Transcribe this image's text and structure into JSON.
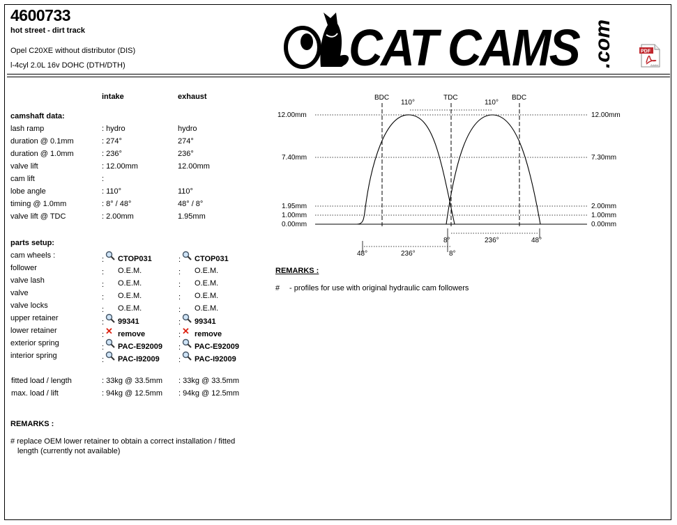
{
  "header": {
    "part_number": "4600733",
    "subtitle": "hot street - dirt track",
    "engine_line1": "Opel C20XE without distributor (DIS)",
    "engine_line2": "l-4cyl 2.0L 16v DOHC (DTH/DTH)",
    "brand": "CAT CAMS",
    "brand_suffix": ".com",
    "pdf_label": "PDF",
    "pdf_sub": "Adobe"
  },
  "columns": {
    "intake": "intake",
    "exhaust": "exhaust"
  },
  "camshaft": {
    "title": "camshaft data:",
    "rows": [
      {
        "label": "lash ramp",
        "intake": ": hydro",
        "exhaust": "hydro"
      },
      {
        "label": "duration @ 0.1mm",
        "intake": ": 274°",
        "exhaust": "274°"
      },
      {
        "label": "duration @ 1.0mm",
        "intake": ": 236°",
        "exhaust": "236°"
      },
      {
        "label": "valve lift",
        "intake": ": 12.00mm",
        "exhaust": "12.00mm"
      },
      {
        "label": "cam lift",
        "intake": ":",
        "exhaust": ""
      },
      {
        "label": "lobe angle",
        "intake": ": 110°",
        "exhaust": "110°"
      },
      {
        "label": "timing @ 1.0mm",
        "intake": ": 8° / 48°",
        "exhaust": "48° / 8°"
      },
      {
        "label": "valve lift @ TDC",
        "intake": ": 2.00mm",
        "exhaust": "1.95mm"
      }
    ]
  },
  "parts": {
    "title": "parts setup:",
    "rows": [
      {
        "label": "cam wheels :",
        "intake": "CTOP031",
        "exhaust": "CTOP031",
        "icon": "magnifier-icon"
      },
      {
        "label": "follower",
        "intake": "O.E.M.",
        "exhaust": "O.E.M.",
        "icon": ""
      },
      {
        "label": "valve lash",
        "intake": "O.E.M.",
        "exhaust": "O.E.M.",
        "icon": ""
      },
      {
        "label": "valve",
        "intake": "O.E.M.",
        "exhaust": "O.E.M.",
        "icon": ""
      },
      {
        "label": "valve locks",
        "intake": "O.E.M.",
        "exhaust": "O.E.M.",
        "icon": ""
      },
      {
        "label": "upper retainer",
        "intake": "99341",
        "exhaust": "99341",
        "icon": "magnifier-icon"
      },
      {
        "label": "lower retainer",
        "intake": "remove",
        "exhaust": "remove",
        "icon": "remove-x-icon"
      },
      {
        "label": "exterior spring",
        "intake": "PAC-E92009",
        "exhaust": "PAC-E92009",
        "icon": "magnifier-icon"
      },
      {
        "label": "interior spring",
        "intake": "PAC-I92009",
        "exhaust": "PAC-I92009",
        "icon": "magnifier-icon"
      }
    ]
  },
  "spring": {
    "rows": [
      {
        "label": "fitted load / length",
        "intake": ": 33kg @ 33.5mm",
        "exhaust": ": 33kg @ 33.5mm"
      },
      {
        "label": "max. load / lift",
        "intake": ": 94kg @ 12.5mm",
        "exhaust": ": 94kg @ 12.5mm"
      }
    ]
  },
  "remarks_left": {
    "title": "REMARKS :",
    "line1": "# replace OEM lower retainer to obtain a correct installation / fitted",
    "line2": "length (currently not available)"
  },
  "remarks_right": {
    "title": "REMARKS :",
    "hash": "#",
    "text": "- profiles for use with original hydraulic cam followers"
  },
  "diagram": {
    "bdc_left": "BDC",
    "tdc": "TDC",
    "bdc_right": "BDC",
    "lobe_left": "110°",
    "lobe_right": "110°",
    "left_ticks": [
      "12.00mm",
      "7.40mm",
      "1.95mm",
      "1.00mm",
      "0.00mm"
    ],
    "right_ticks": [
      "12.00mm",
      "7.30mm",
      "2.00mm",
      "1.00mm",
      "0.00mm"
    ],
    "ex_close": "8°",
    "ex_dur": "236°",
    "ex_open": "48°",
    "in_close": "48°",
    "in_dur": "236°",
    "in_open": "8°"
  }
}
